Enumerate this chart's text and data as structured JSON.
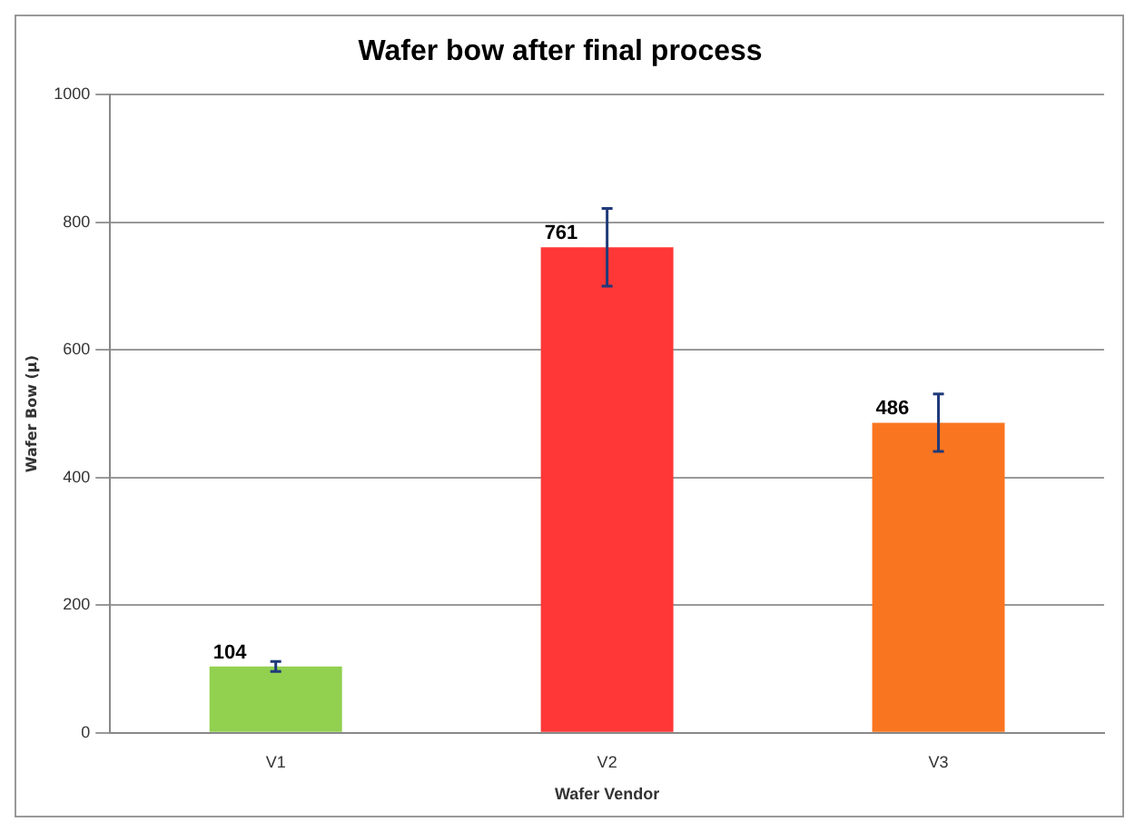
{
  "chart_data": {
    "type": "bar",
    "title": "Wafer bow after final process",
    "xlabel": "Wafer Vendor",
    "ylabel": "Wafer Bow (μ)",
    "categories": [
      "V1",
      "V2",
      "V3"
    ],
    "values": [
      104,
      761,
      486
    ],
    "colors": [
      "#92d050",
      "#ff3737",
      "#fa7520"
    ],
    "errors": [
      8,
      61,
      45
    ],
    "ylim": [
      0,
      1000
    ],
    "yticks": [
      0,
      200,
      400,
      600,
      800,
      1000
    ],
    "grid": "y",
    "legend": false,
    "data_labels": true
  }
}
